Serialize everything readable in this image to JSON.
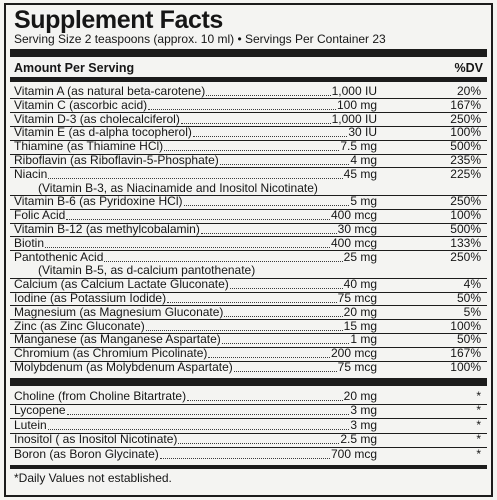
{
  "title": "Supplement Facts",
  "serving_line": "Serving Size 2 teaspoons (approx. 10 ml) • Servings Per Container 23",
  "header": {
    "amount": "Amount Per Serving",
    "dv": "%DV"
  },
  "nutrients": [
    {
      "name": "Vitamin A (as natural beta-carotene)",
      "amount": "1,000 IU",
      "dv": "20%"
    },
    {
      "name": "Vitamin C (ascorbic acid)",
      "amount": "100 mg",
      "dv": "167%"
    },
    {
      "name": "Vitamin D-3 (as cholecalciferol)",
      "amount": "1,000 IU",
      "dv": "250%"
    },
    {
      "name": "Vitamin E (as d-alpha tocopherol)",
      "amount": "30 IU",
      "dv": "100%"
    },
    {
      "name": "Thiamine (as Thiamine HCl)",
      "amount": "7.5 mg",
      "dv": "500%"
    },
    {
      "name": "Riboflavin (as Riboflavin-5-Phosphate)",
      "amount": "4 mg",
      "dv": "235%"
    },
    {
      "name": "Niacin",
      "amount": "45 mg",
      "dv": "225%"
    },
    {
      "name": "(Vitamin B-3, as Niacinamide and Inositol Nicotinate)",
      "amount": "",
      "dv": "",
      "indent": true
    },
    {
      "name": "Vitamin B-6 (as Pyridoxine HCl)",
      "amount": "5 mg",
      "dv": "250%"
    },
    {
      "name": "Folic Acid",
      "amount": "400 mcg",
      "dv": "100%"
    },
    {
      "name": "Vitamin B-12 (as methylcobalamin)",
      "amount": "30 mcg",
      "dv": "500%"
    },
    {
      "name": "Biotin",
      "amount": "400 mcg",
      "dv": "133%"
    },
    {
      "name": "Pantothenic Acid",
      "amount": "25 mg",
      "dv": "250%"
    },
    {
      "name": "(Vitamin B-5, as d-calcium pantothenate)",
      "amount": "",
      "dv": "",
      "indent": true
    },
    {
      "name": "Calcium (as Calcium Lactate Gluconate)",
      "amount": "40 mg",
      "dv": "4%"
    },
    {
      "name": "Iodine (as Potassium Iodide)",
      "amount": "75 mcg",
      "dv": "50%"
    },
    {
      "name": "Magnesium (as Magnesium Gluconate)",
      "amount": "20 mg",
      "dv": "5%"
    },
    {
      "name": "Zinc (as Zinc Gluconate)",
      "amount": "15 mg",
      "dv": "100%"
    },
    {
      "name": "Manganese (as Manganese Aspartate)",
      "amount": "1 mg",
      "dv": "50%"
    },
    {
      "name": "Chromium (as Chromium Picolinate)",
      "amount": "200 mcg",
      "dv": "167%"
    },
    {
      "name": "Molybdenum (as Molybdenum Aspartate)",
      "amount": "75 mcg",
      "dv": "100%"
    }
  ],
  "other": [
    {
      "name": "Choline (from Choline Bitartrate)",
      "amount": "20 mg",
      "dv": "*"
    },
    {
      "name": "Lycopene",
      "amount": "3 mg",
      "dv": "*"
    },
    {
      "name": "Lutein",
      "amount": "3 mg",
      "dv": "*"
    },
    {
      "name": "Inositol ( as Inositol Nicotinate)",
      "amount": "2.5 mg",
      "dv": "*"
    },
    {
      "name": "Boron (as Boron Glycinate)",
      "amount": "700 mcg",
      "dv": "*"
    }
  ],
  "footnote": "*Daily Values not established."
}
